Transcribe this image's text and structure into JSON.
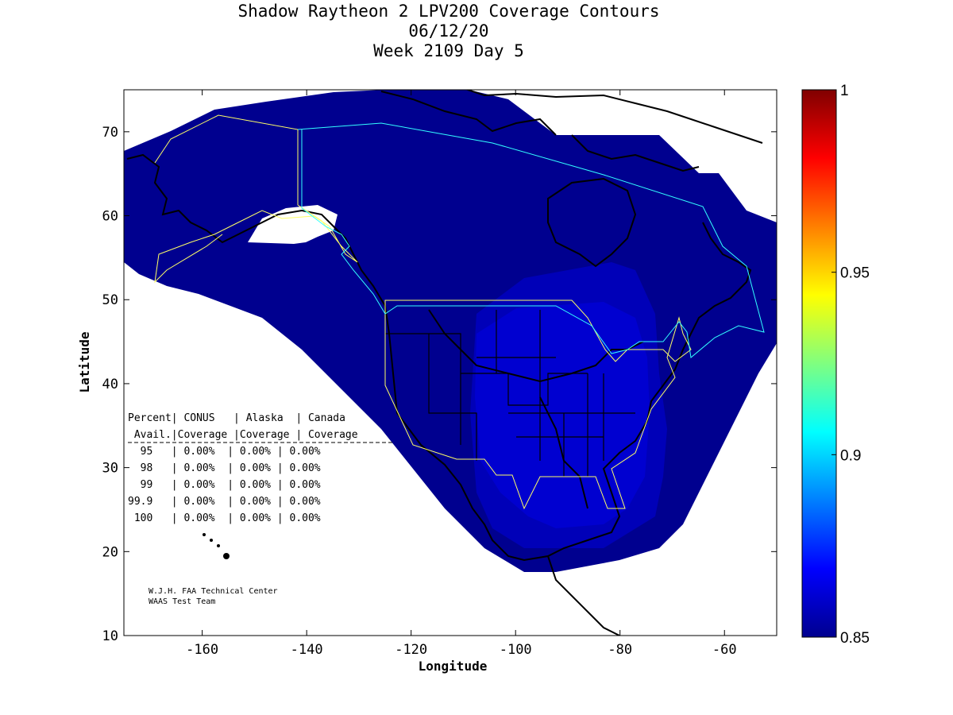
{
  "title": {
    "line1": "Shadow Raytheon 2 LPV200 Coverage Contours",
    "line2": "06/12/20",
    "line3": "Week 2109 Day 5"
  },
  "axes": {
    "xlabel": "Longitude",
    "ylabel": "Latitude",
    "xlim": [
      -175,
      -50
    ],
    "ylim": [
      10,
      75
    ],
    "xticks": [
      "-160",
      "-140",
      "-120",
      "-100",
      "-80",
      "-60"
    ],
    "yticks": [
      "70",
      "60",
      "50",
      "40",
      "30",
      "20",
      "10"
    ]
  },
  "colorbar": {
    "min": 0.85,
    "max": 1,
    "ticks": [
      "1",
      "0.95",
      "0.9",
      "0.85"
    ]
  },
  "table": {
    "header1": "Percent| CONUS   | Alaska  | Canada",
    "header2": " Avail.|Coverage |Coverage | Coverage",
    "rows": [
      "  95   | 0.00%  | 0.00% | 0.00%",
      "  98   | 0.00%  | 0.00% | 0.00%",
      "  99   | 0.00%  | 0.00% | 0.00%",
      "99.9   | 0.00%  | 0.00% | 0.00%",
      " 100   | 0.00%  | 0.00% | 0.00%"
    ]
  },
  "credit": {
    "line1": "W.J.H. FAA Technical Center",
    "line2": "WAAS Test Team"
  },
  "colors": {
    "outer": "#00008f",
    "mid": "#0000b8",
    "inner": "#0000d0",
    "boundary_yellow": "#ffff66",
    "boundary_cyan": "#33ffff"
  }
}
